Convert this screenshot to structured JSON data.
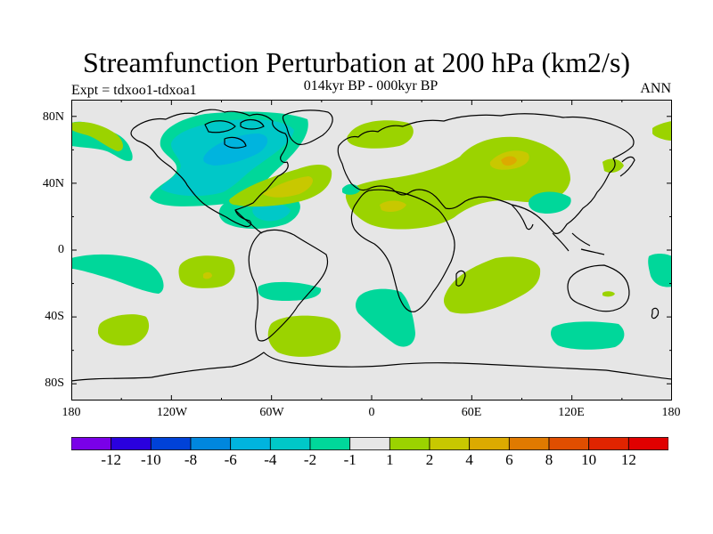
{
  "title": "Streamfunction Perturbation at 200 hPa (km2/s)",
  "subtitle": "014kyr BP - 000kyr BP",
  "left_label": "Expt = tdxoo1-tdxoa1",
  "right_label": "ANN",
  "map": {
    "projection": "cylindrical-equidistant",
    "lat_range": [
      -90,
      90
    ],
    "lon_range": [
      -180,
      180
    ],
    "lat_ticks": [
      "80N",
      "40N",
      "0",
      "40S",
      "80S"
    ],
    "lon_ticks": [
      "180",
      "120W",
      "60W",
      "0",
      "60E",
      "120E",
      "180"
    ],
    "colors": {
      "background": "#e6e6e6",
      "n1": "#00d79a",
      "n2": "#00c8c8",
      "n3": "#00b4de",
      "p1": "#9bd300",
      "p2": "#c8c800",
      "p3": "#dcaa00",
      "coast": "#000000"
    }
  },
  "colorbar": {
    "colors": [
      "#7a00e8",
      "#2a00de",
      "#0042d8",
      "#0087de",
      "#00b4de",
      "#00c8c8",
      "#00d79a",
      "#e6e6e6",
      "#9bd300",
      "#c8c800",
      "#dcaa00",
      "#e07a00",
      "#e04e00",
      "#e02400",
      "#e00000"
    ],
    "labels": [
      "-12",
      "-10",
      "-8",
      "-6",
      "-4",
      "-2",
      "-1",
      "1",
      "2",
      "4",
      "6",
      "8",
      "10",
      "12"
    ]
  }
}
